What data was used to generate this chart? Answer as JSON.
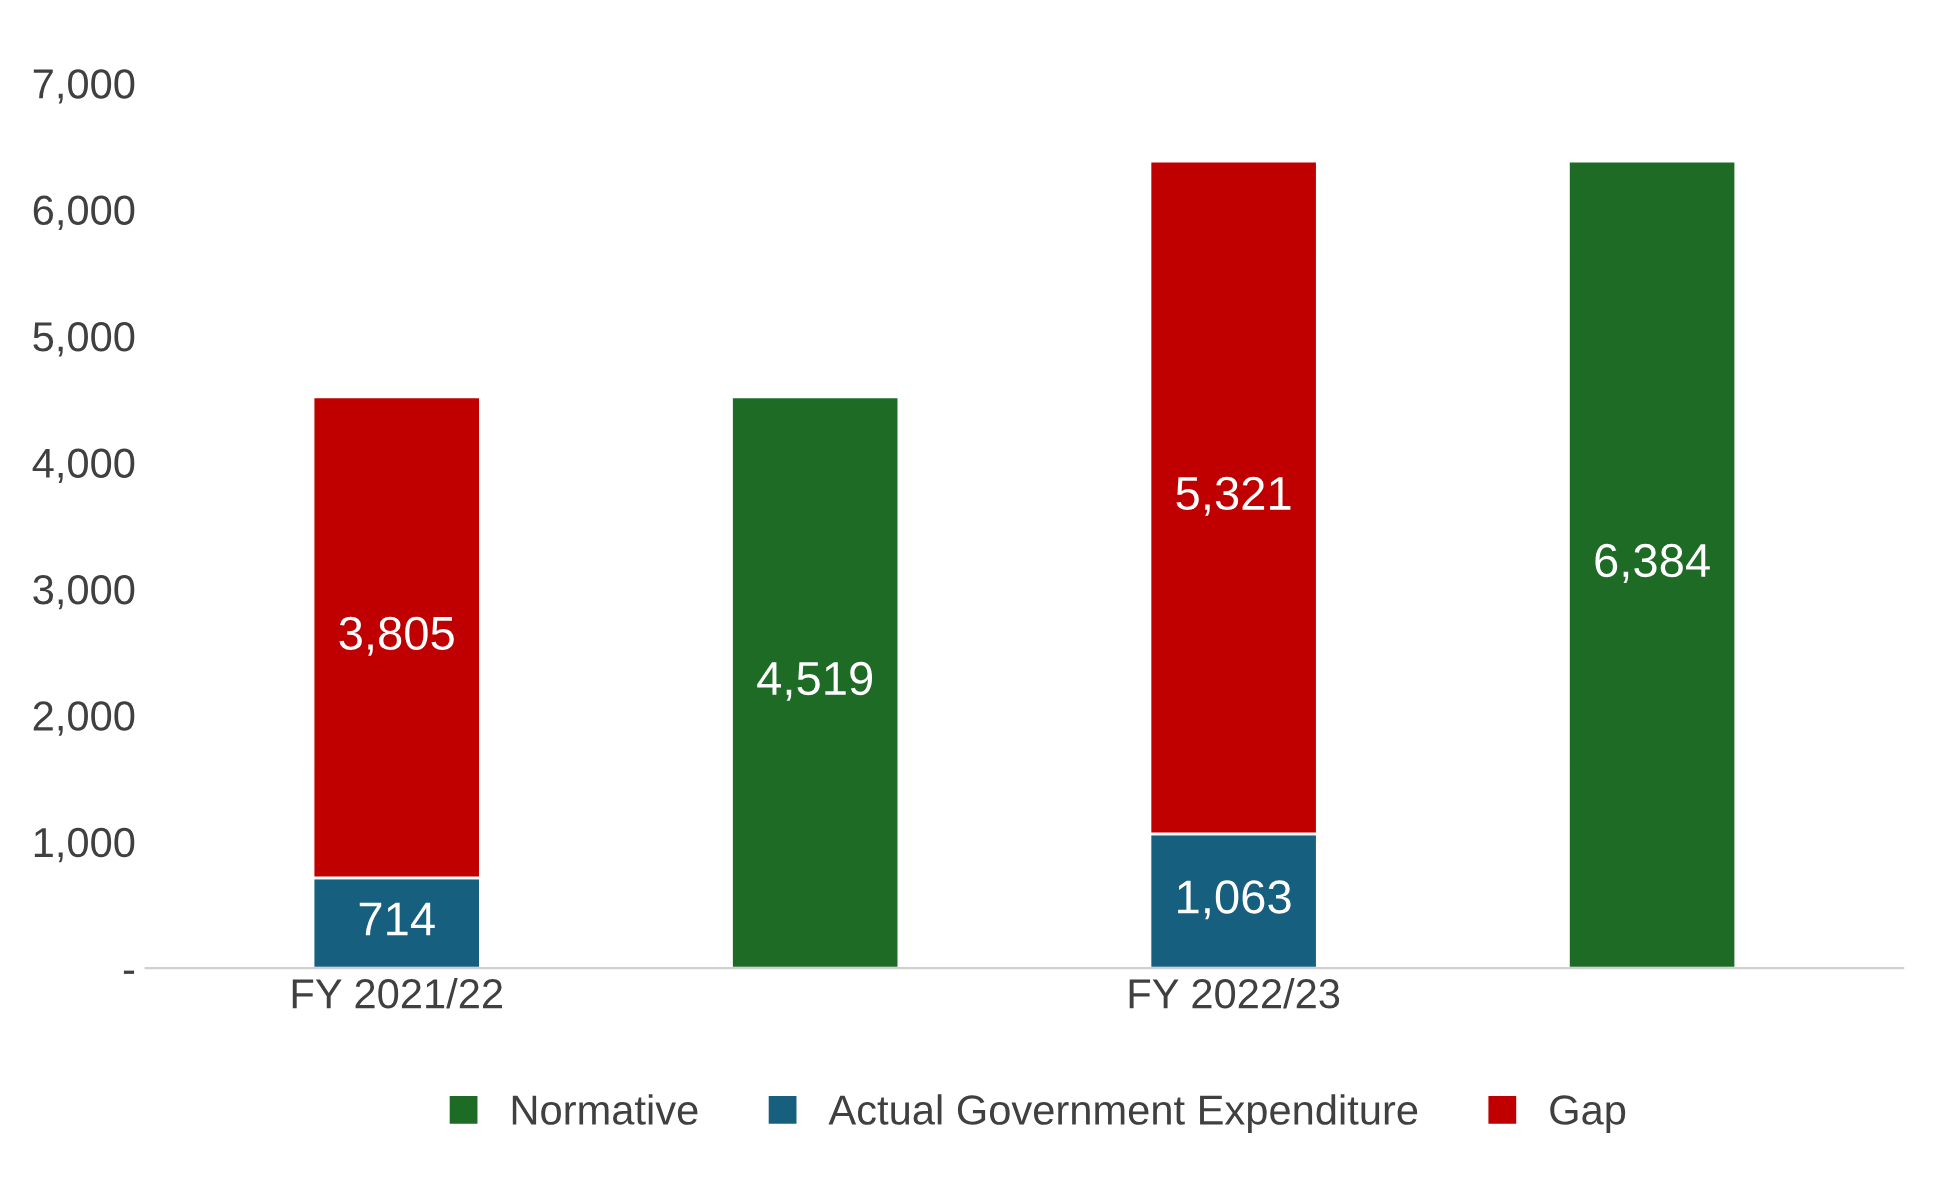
{
  "chart_data": {
    "type": "bar",
    "stacked": true,
    "legend": "bottom",
    "grid": false,
    "categories": [
      "FY 2021/22",
      null,
      "FY 2022/23",
      null
    ],
    "series": [
      {
        "name": "Normative",
        "color": "#1e6b26",
        "values": [
          null,
          4519,
          null,
          6384
        ],
        "value_labels": [
          null,
          "4,519",
          null,
          "6,384"
        ]
      },
      {
        "name": "Actual Government Expenditure",
        "color": "#175f7f",
        "values": [
          714,
          null,
          1063,
          null
        ],
        "value_labels": [
          "714",
          null,
          "1,063",
          null
        ]
      },
      {
        "name": "Gap",
        "color": "#c00000",
        "values": [
          3805,
          null,
          5321,
          null
        ],
        "value_labels": [
          "3,805",
          null,
          "5,321",
          null
        ]
      }
    ],
    "ylim": [
      0,
      7000
    ],
    "yticks": [
      {
        "value": 0,
        "label": "-"
      },
      {
        "value": 1000,
        "label": "1,000"
      },
      {
        "value": 2000,
        "label": "2,000"
      },
      {
        "value": 3000,
        "label": "3,000"
      },
      {
        "value": 4000,
        "label": "4,000"
      },
      {
        "value": 5000,
        "label": "5,000"
      },
      {
        "value": 6000,
        "label": "6,000"
      },
      {
        "value": 7000,
        "label": "7,000"
      }
    ]
  }
}
